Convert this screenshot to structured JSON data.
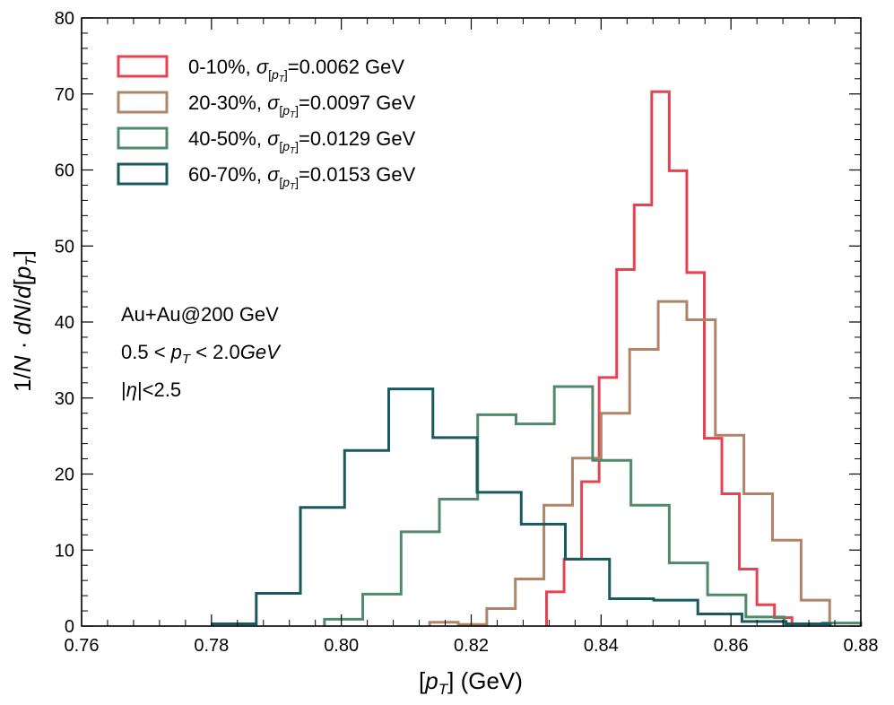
{
  "chart_data": {
    "type": "histogram-step",
    "xlabel": "[pT] (GeV)",
    "ylabel": "1/N · dN/d[pT]",
    "xlim": [
      0.76,
      0.88
    ],
    "ylim": [
      0,
      80
    ],
    "x_ticks": [
      "0.76",
      "0.78",
      "0.80",
      "0.82",
      "0.84",
      "0.86",
      "0.88"
    ],
    "y_ticks": [
      "0",
      "10",
      "20",
      "30",
      "40",
      "50",
      "60",
      "70",
      "80"
    ],
    "legend_position": "top-left",
    "annotations": {
      "system": "Au+Au@200 GeV",
      "pt_low": "0.5",
      "pt_high": "2.0",
      "pt_unit": "GeV",
      "eta_cut": "<2.5"
    },
    "series": [
      {
        "name": "0-10%",
        "sigma": "0.0062 GeV",
        "color": "#e8414f",
        "edges": [
          0.8316,
          0.8343,
          0.837,
          0.8397,
          0.8424,
          0.8451,
          0.8478,
          0.8505,
          0.8532,
          0.8559,
          0.8586,
          0.8613,
          0.864,
          0.8667,
          0.8694
        ],
        "values": [
          4.5,
          8.8,
          19.0,
          32.7,
          46.9,
          55.4,
          70.3,
          59.9,
          46.5,
          24.7,
          17.4,
          7.5,
          2.8,
          1.1
        ]
      },
      {
        "name": "20-30%",
        "sigma": "0.0097 GeV",
        "color": "#b08468",
        "edges": [
          0.8136,
          0.818,
          0.8224,
          0.8268,
          0.8312,
          0.8356,
          0.84,
          0.8444,
          0.8488,
          0.8532,
          0.8576,
          0.862,
          0.8664,
          0.8708,
          0.8752
        ],
        "values": [
          0.5,
          0.2,
          2.3,
          6.2,
          15.9,
          22.1,
          28.0,
          36.4,
          42.7,
          40.3,
          25.1,
          17.4,
          11.3,
          3.4
        ]
      },
      {
        "name": "40-50%",
        "sigma": "0.0129 GeV",
        "color": "#4f8a69",
        "edges": [
          0.7974,
          0.8033,
          0.8092,
          0.8151,
          0.821,
          0.8269,
          0.8328,
          0.8387,
          0.8446,
          0.8505,
          0.8564,
          0.8623,
          0.8682,
          0.8741,
          0.88
        ],
        "values": [
          0.9,
          4.2,
          12.4,
          16.7,
          27.8,
          26.6,
          31.5,
          21.8,
          15.9,
          8.3,
          4.1,
          1.2,
          0.3,
          0.4
        ]
      },
      {
        "name": "60-70%",
        "sigma": "0.0153 GeV",
        "color": "#195a60",
        "edges": [
          0.7801,
          0.7869,
          0.7937,
          0.8005,
          0.8073,
          0.8141,
          0.8209,
          0.8277,
          0.8345,
          0.8413,
          0.8481,
          0.8549,
          0.8617,
          0.8685,
          0.8753
        ],
        "values": [
          0.3,
          4.3,
          15.6,
          23.1,
          31.2,
          24.8,
          17.6,
          13.4,
          8.8,
          3.6,
          3.4,
          1.6,
          0.6,
          0.3
        ]
      }
    ]
  }
}
